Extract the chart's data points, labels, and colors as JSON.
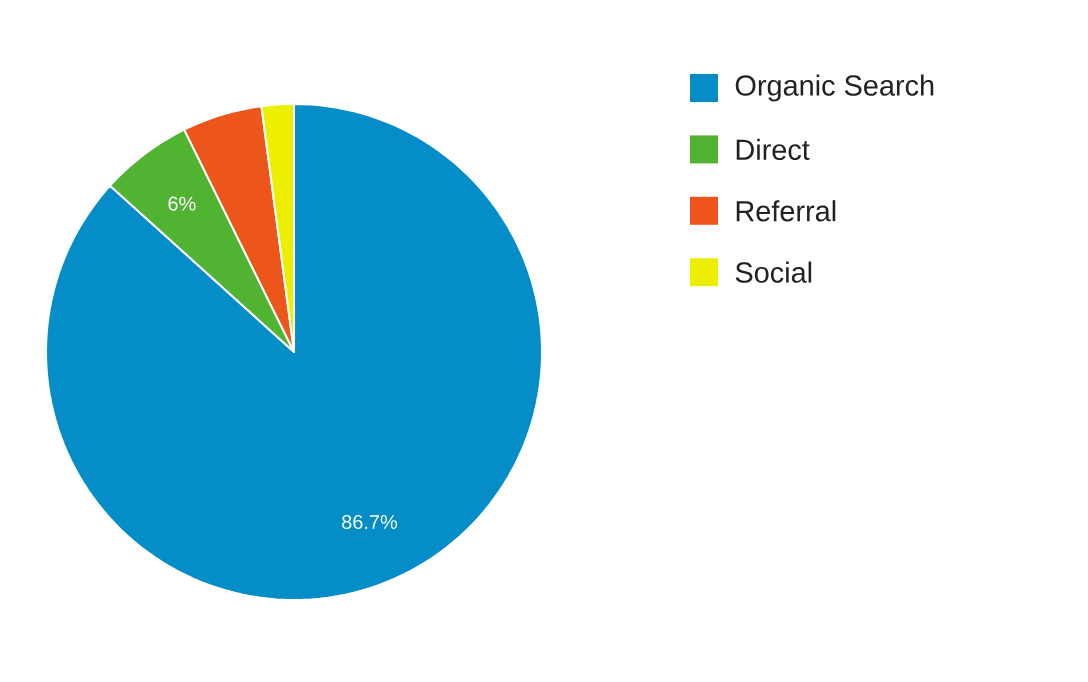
{
  "chart_data": {
    "type": "pie",
    "categories": [
      "Organic Search",
      "Direct",
      "Referral",
      "Social"
    ],
    "values": [
      86.7,
      6,
      5.2,
      2.1
    ],
    "colors": [
      "#058dc7",
      "#50b432",
      "#ed561b",
      "#edef00"
    ],
    "value_labels": [
      "86.7%",
      "6%",
      null,
      null
    ],
    "legend": "right"
  }
}
